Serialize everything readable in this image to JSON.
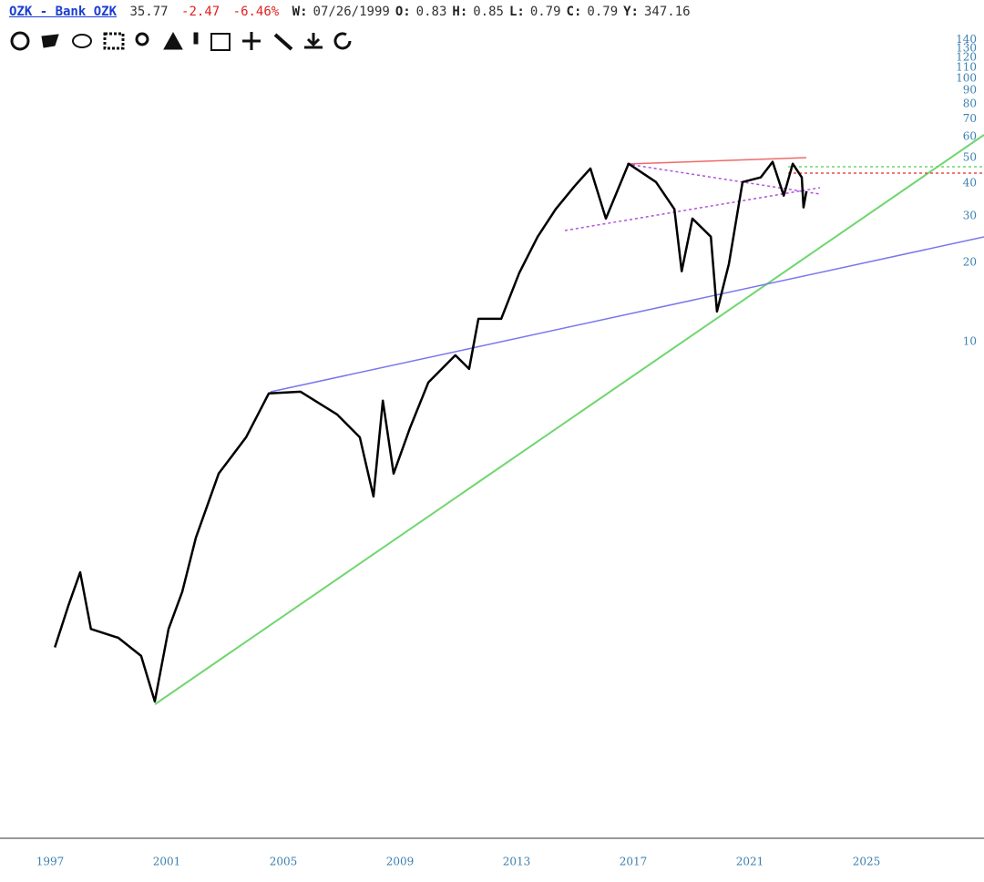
{
  "header": {
    "symbol": "OZK - Bank OZK",
    "last": "35.77",
    "change": "-2.47",
    "change_pct": "-6.46%",
    "fields": [
      {
        "label": "W:",
        "value": "07/26/1999"
      },
      {
        "label": "O:",
        "value": "0.83"
      },
      {
        "label": "H:",
        "value": "0.85"
      },
      {
        "label": "L:",
        "value": "0.79"
      },
      {
        "label": "C:",
        "value": "0.79"
      },
      {
        "label": "Y:",
        "value": "347.16"
      }
    ]
  },
  "chart_data": {
    "type": "line",
    "log": true,
    "xlim": [
      1995.28,
      2029.03
    ],
    "xticks": [
      1997,
      2001,
      2005,
      2009,
      2013,
      2017,
      2021,
      2025
    ],
    "ylim": [
      0.13,
      198
    ],
    "yticks": [
      10,
      20,
      30,
      40,
      50,
      60,
      70,
      80,
      90,
      100,
      110,
      120,
      130,
      140
    ],
    "series": [
      {
        "name": "OZK",
        "color": "#000000",
        "x": [
          1997.16,
          1997.62,
          1998.03,
          1998.4,
          1999.34,
          2000.12,
          2000.59,
          2001.06,
          2001.53,
          2002.0,
          2002.78,
          2003.72,
          2004.5,
          2005.59,
          2006.84,
          2007.62,
          2008.09,
          2008.41,
          2008.78,
          2009.34,
          2009.97,
          2010.9,
          2011.37,
          2011.69,
          2012.47,
          2013.09,
          2013.72,
          2014.34,
          2014.97,
          2015.53,
          2016.06,
          2016.84,
          2017.78,
          2018.41,
          2018.66,
          2019.03,
          2019.66,
          2019.87,
          2020.28,
          2020.75,
          2021.37,
          2021.78,
          2022.16,
          2022.47,
          2022.78,
          2022.84,
          2022.94
        ],
        "values": [
          0.69,
          0.99,
          1.33,
          0.81,
          0.75,
          0.64,
          0.43,
          0.81,
          1.12,
          1.8,
          3.15,
          4.33,
          6.35,
          6.45,
          5.29,
          4.33,
          2.58,
          5.96,
          3.15,
          4.69,
          6.99,
          8.87,
          7.87,
          12.2,
          12.2,
          18.2,
          25.0,
          31.8,
          38.7,
          45.4,
          29.3,
          47.3,
          40.3,
          31.8,
          18.5,
          29.3,
          25.0,
          13.0,
          19.7,
          40.3,
          42.0,
          48.1,
          35.8,
          47.3,
          42.0,
          32.3,
          37.2
        ]
      }
    ]
  }
}
